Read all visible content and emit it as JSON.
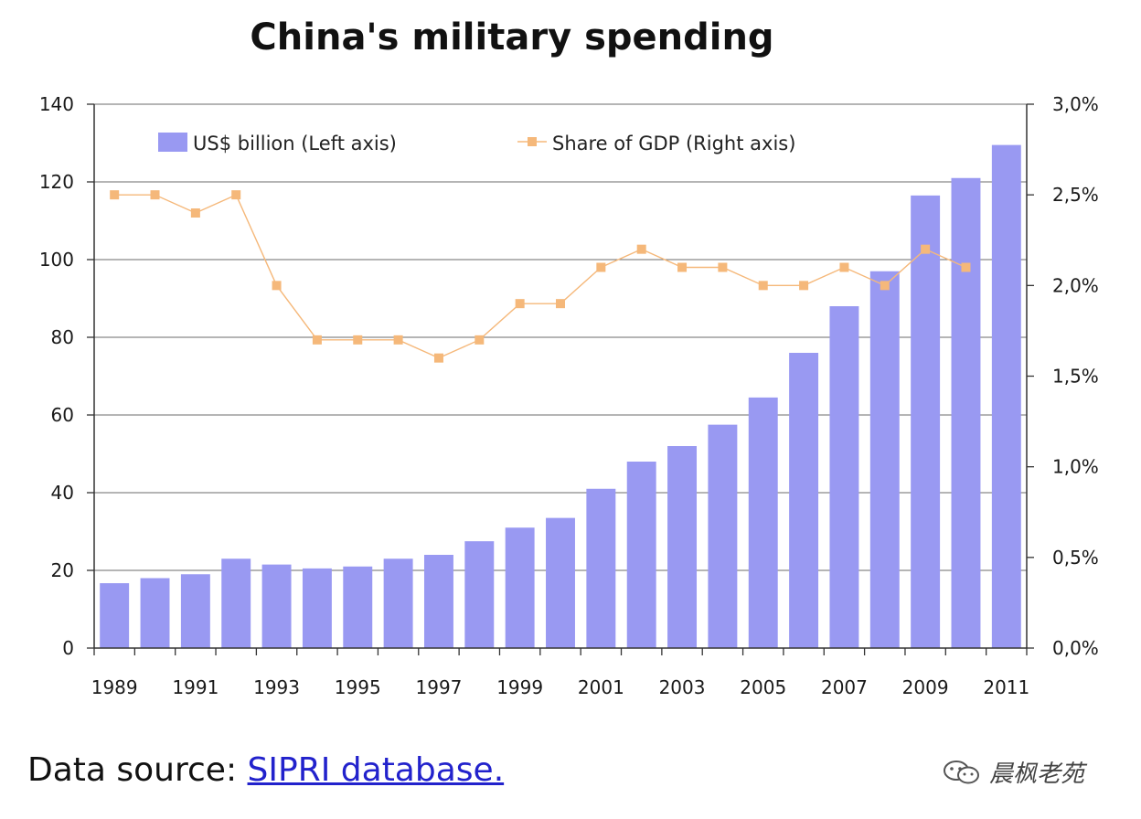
{
  "chart_data": {
    "type": "bar",
    "title": "China's military spending",
    "categories": [
      "1989",
      "1990",
      "1991",
      "1992",
      "1993",
      "1994",
      "1995",
      "1996",
      "1997",
      "1998",
      "1999",
      "2000",
      "2001",
      "2002",
      "2003",
      "2004",
      "2005",
      "2006",
      "2007",
      "2008",
      "2009",
      "2010",
      "2011"
    ],
    "x_tick_labels": [
      "1989",
      "1991",
      "1993",
      "1995",
      "1997",
      "1999",
      "2001",
      "2003",
      "2005",
      "2007",
      "2009",
      "2011"
    ],
    "series": [
      {
        "name": "US$ billion (Left axis)",
        "type": "bar",
        "axis": "left",
        "color": "#9999f2",
        "values": [
          16.7,
          18,
          19,
          23,
          21.5,
          20.5,
          21,
          23,
          24,
          27.5,
          31,
          33.5,
          41,
          48,
          52,
          57.5,
          64.5,
          76,
          88,
          97,
          116.5,
          121,
          129.5
        ]
      },
      {
        "name": "Share of GDP (Right axis)",
        "type": "line",
        "axis": "right",
        "color": "#f5b87a",
        "values": [
          2.5,
          2.5,
          2.4,
          2.5,
          2.0,
          1.7,
          1.7,
          1.7,
          1.6,
          1.7,
          1.9,
          1.9,
          2.1,
          2.2,
          2.1,
          2.1,
          2.0,
          2.0,
          2.1,
          2.0,
          2.2,
          2.1,
          null
        ]
      }
    ],
    "ylim": [
      0,
      140
    ],
    "yticks": [
      0,
      20,
      40,
      60,
      80,
      100,
      120,
      140
    ],
    "y2lim": [
      0,
      3.0
    ],
    "y2ticks": [
      "0,0%",
      "0,5%",
      "1,0%",
      "1,5%",
      "2,0%",
      "2,5%",
      "3,0%"
    ],
    "grid": true,
    "legend": "top"
  },
  "footer": {
    "source_label": "Data source:",
    "source_link": "SIPRI database."
  },
  "watermark": {
    "text": "晨枫老苑"
  }
}
